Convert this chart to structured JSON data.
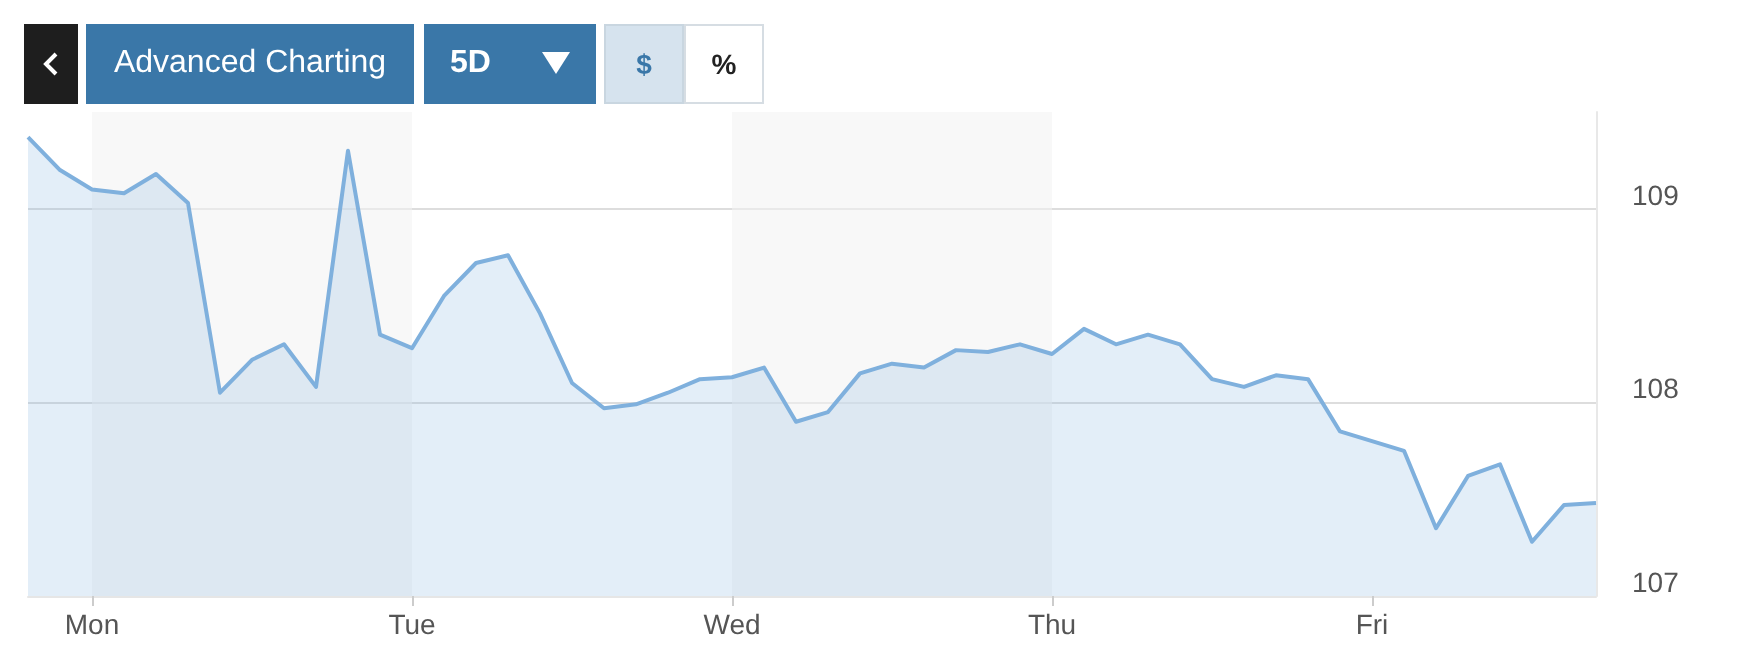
{
  "chart_data": {
    "type": "area",
    "annotations": [
      "Advanced Charting",
      "5D",
      "$",
      "%"
    ],
    "categories": [
      null,
      null,
      "Mon",
      null,
      null,
      null,
      null,
      null,
      null,
      null,
      null,
      null,
      "Tue",
      null,
      null,
      null,
      null,
      null,
      null,
      null,
      null,
      null,
      "Wed",
      null,
      null,
      null,
      null,
      null,
      null,
      null,
      null,
      null,
      "Thu",
      null,
      null,
      null,
      null,
      null,
      null,
      null,
      null,
      null,
      "Fri",
      null,
      null,
      null,
      null,
      null,
      null,
      null
    ],
    "series": [
      {
        "color": "#7fb0dd",
        "values": [
          109.37,
          109.2,
          109.1,
          109.08,
          109.18,
          109.03,
          108.05,
          108.22,
          108.3,
          108.08,
          109.3,
          108.35,
          108.28,
          108.55,
          108.72,
          108.76,
          108.46,
          108.1,
          107.97,
          107.99,
          108.05,
          108.12,
          108.13,
          108.18,
          107.9,
          107.95,
          108.15,
          108.2,
          108.18,
          108.27,
          108.26,
          108.3,
          108.25,
          108.38,
          108.3,
          108.35,
          108.3,
          108.12,
          108.08,
          108.14,
          108.12,
          107.85,
          107.8,
          107.75,
          107.35,
          107.62,
          107.68,
          107.28,
          107.47,
          107.48
        ]
      }
    ],
    "ylim": [
      107,
      109.5
    ],
    "yticks": [
      107,
      108,
      109
    ],
    "grid": "y",
    "bands": [
      {
        "axis": "x",
        "from": "Mon",
        "to": "Tue",
        "color": "#f3f3f3"
      },
      {
        "axis": "x",
        "from": "Wed",
        "to": "Thu",
        "color": "#f3f3f3"
      }
    ]
  }
}
